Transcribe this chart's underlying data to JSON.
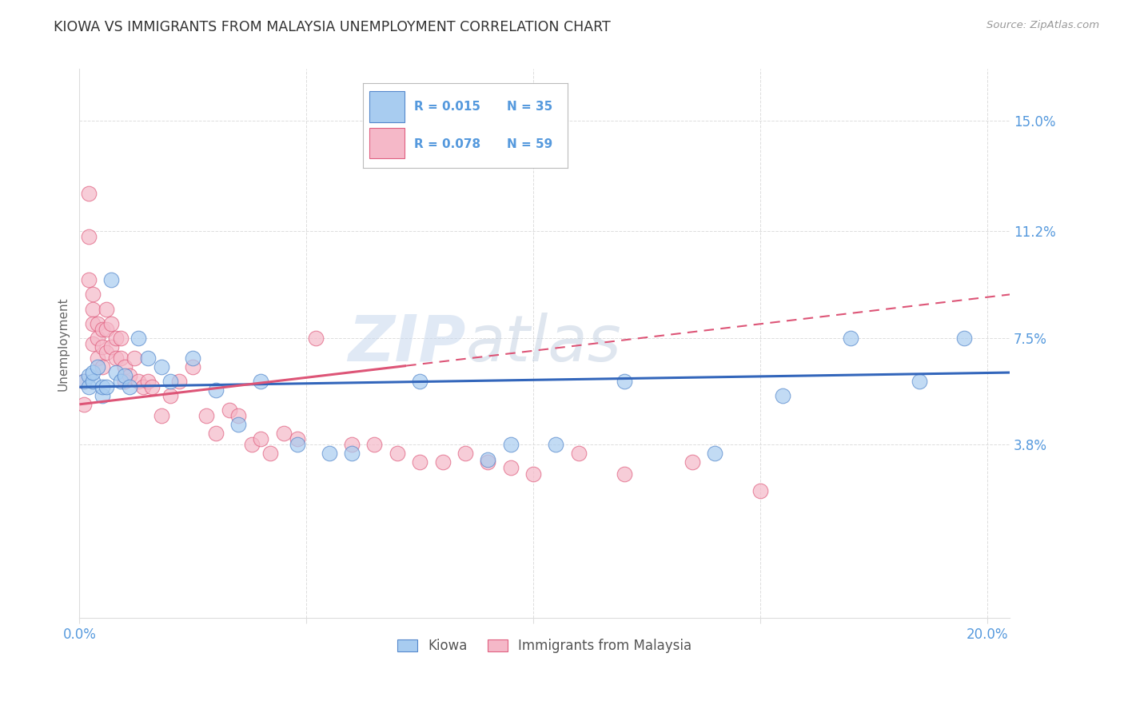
{
  "title": "KIOWA VS IMMIGRANTS FROM MALAYSIA UNEMPLOYMENT CORRELATION CHART",
  "source": "Source: ZipAtlas.com",
  "ylabel": "Unemployment",
  "xlim": [
    0.0,
    0.205
  ],
  "ylim": [
    -0.022,
    0.168
  ],
  "ytick_vals": [
    0.038,
    0.075,
    0.112,
    0.15
  ],
  "ytick_labels": [
    "3.8%",
    "7.5%",
    "11.2%",
    "15.0%"
  ],
  "xtick_vals": [
    0.0,
    0.05,
    0.1,
    0.15,
    0.2
  ],
  "xtick_labels": [
    "0.0%",
    "",
    "",
    "",
    "20.0%"
  ],
  "watermark_zip": "ZIP",
  "watermark_atlas": "atlas",
  "legend_r1": "R = 0.015",
  "legend_n1": "N = 35",
  "legend_r2": "R = 0.078",
  "legend_n2": "N = 59",
  "legend_label1": "Kiowa",
  "legend_label2": "Immigrants from Malaysia",
  "blue_fill": "#A8CCF0",
  "pink_fill": "#F5B8C8",
  "blue_edge": "#5588CC",
  "pink_edge": "#E06080",
  "line_blue_color": "#3366BB",
  "line_pink_color": "#DD5577",
  "title_color": "#333333",
  "axis_tick_color": "#5599DD",
  "ylabel_color": "#666666",
  "grid_color": "#DDDDDD",
  "kiowa_x": [
    0.001,
    0.002,
    0.002,
    0.003,
    0.003,
    0.004,
    0.005,
    0.005,
    0.006,
    0.007,
    0.008,
    0.009,
    0.01,
    0.011,
    0.013,
    0.015,
    0.018,
    0.02,
    0.025,
    0.03,
    0.035,
    0.04,
    0.048,
    0.055,
    0.06,
    0.075,
    0.09,
    0.095,
    0.105,
    0.12,
    0.14,
    0.155,
    0.17,
    0.185,
    0.195
  ],
  "kiowa_y": [
    0.06,
    0.062,
    0.058,
    0.06,
    0.063,
    0.065,
    0.055,
    0.058,
    0.058,
    0.095,
    0.063,
    0.06,
    0.062,
    0.058,
    0.075,
    0.068,
    0.065,
    0.06,
    0.068,
    0.057,
    0.045,
    0.06,
    0.038,
    0.035,
    0.035,
    0.06,
    0.033,
    0.038,
    0.038,
    0.06,
    0.035,
    0.055,
    0.075,
    0.06,
    0.075
  ],
  "malaysia_x": [
    0.001,
    0.001,
    0.002,
    0.002,
    0.002,
    0.003,
    0.003,
    0.003,
    0.003,
    0.004,
    0.004,
    0.004,
    0.005,
    0.005,
    0.005,
    0.006,
    0.006,
    0.006,
    0.007,
    0.007,
    0.008,
    0.008,
    0.009,
    0.009,
    0.01,
    0.01,
    0.011,
    0.012,
    0.013,
    0.014,
    0.015,
    0.016,
    0.018,
    0.02,
    0.022,
    0.025,
    0.028,
    0.03,
    0.033,
    0.035,
    0.038,
    0.04,
    0.042,
    0.045,
    0.048,
    0.052,
    0.06,
    0.065,
    0.07,
    0.075,
    0.08,
    0.085,
    0.09,
    0.095,
    0.1,
    0.11,
    0.12,
    0.135,
    0.15
  ],
  "malaysia_y": [
    0.06,
    0.052,
    0.125,
    0.11,
    0.095,
    0.09,
    0.085,
    0.08,
    0.073,
    0.08,
    0.075,
    0.068,
    0.078,
    0.072,
    0.065,
    0.085,
    0.078,
    0.07,
    0.08,
    0.072,
    0.075,
    0.068,
    0.075,
    0.068,
    0.065,
    0.06,
    0.062,
    0.068,
    0.06,
    0.058,
    0.06,
    0.058,
    0.048,
    0.055,
    0.06,
    0.065,
    0.048,
    0.042,
    0.05,
    0.048,
    0.038,
    0.04,
    0.035,
    0.042,
    0.04,
    0.075,
    0.038,
    0.038,
    0.035,
    0.032,
    0.032,
    0.035,
    0.032,
    0.03,
    0.028,
    0.035,
    0.028,
    0.032,
    0.022
  ]
}
